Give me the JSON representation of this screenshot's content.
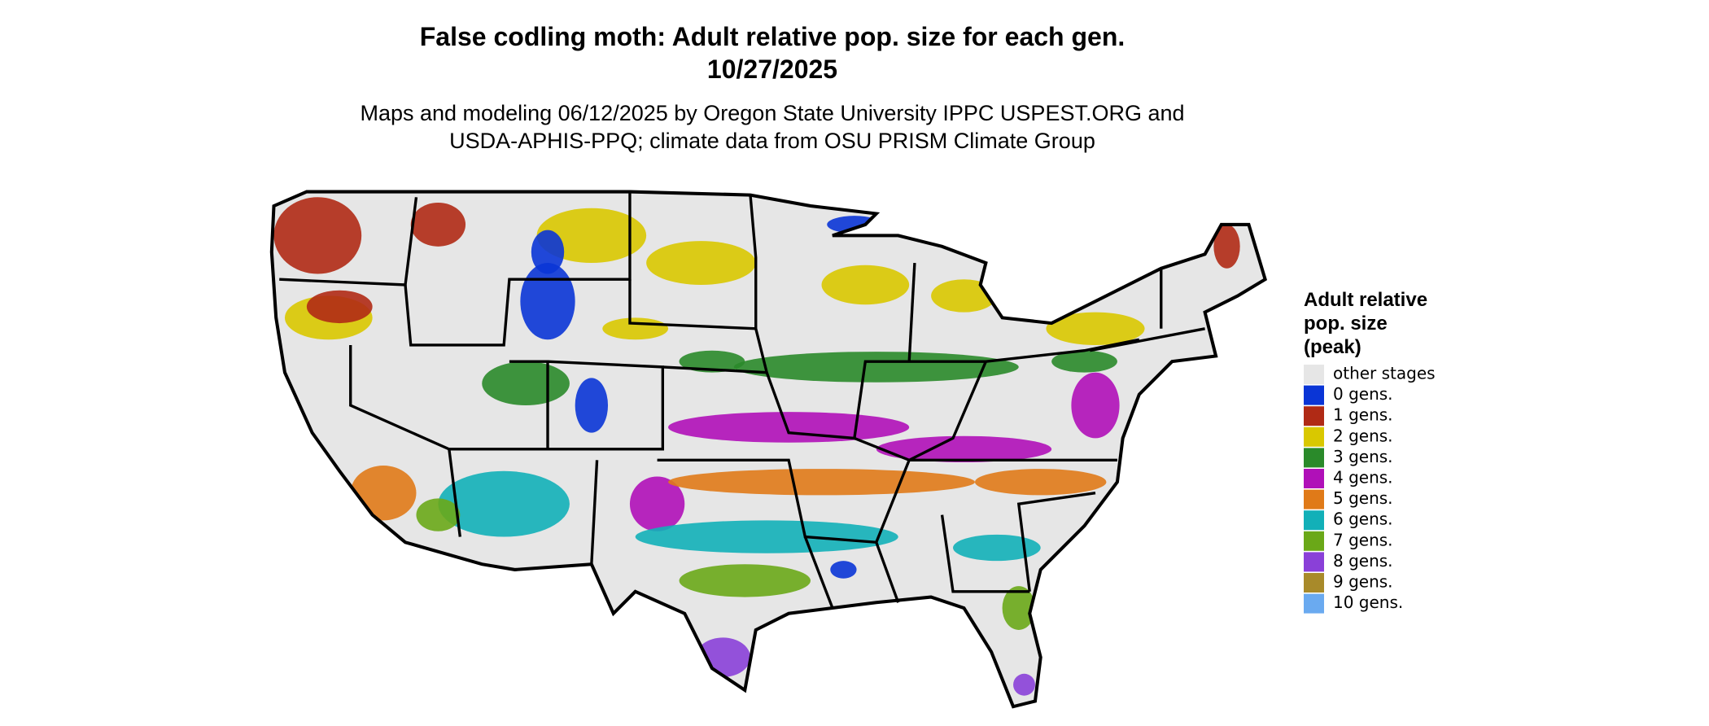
{
  "title": [
    "False codling moth: Adult relative pop. size for each gen.",
    "10/27/2025"
  ],
  "subtitle": [
    "Maps and modeling 06/12/2025 by Oregon State University IPPC USPEST.ORG and",
    "USDA-APHIS-PPQ; climate data from OSU PRISM Climate Group"
  ],
  "legend": {
    "title": [
      "Adult relative",
      "pop. size",
      "(peak)"
    ],
    "items": [
      {
        "label": "other stages",
        "color": "#e6e6e6"
      },
      {
        "label": "0 gens.",
        "color": "#0a35d6"
      },
      {
        "label": "1 gens.",
        "color": "#b02a15"
      },
      {
        "label": "2 gens.",
        "color": "#d9c800"
      },
      {
        "label": "3 gens.",
        "color": "#2a8a2a"
      },
      {
        "label": "4 gens.",
        "color": "#b010b8"
      },
      {
        "label": "5 gens.",
        "color": "#e07a18"
      },
      {
        "label": "6 gens.",
        "color": "#12b0b8"
      },
      {
        "label": "7 gens.",
        "color": "#6aa818"
      },
      {
        "label": "8 gens.",
        "color": "#8a40d8"
      },
      {
        "label": "9 gens.",
        "color": "#a88a2a"
      },
      {
        "label": "10 gens.",
        "color": "#6aaaf0"
      }
    ]
  }
}
